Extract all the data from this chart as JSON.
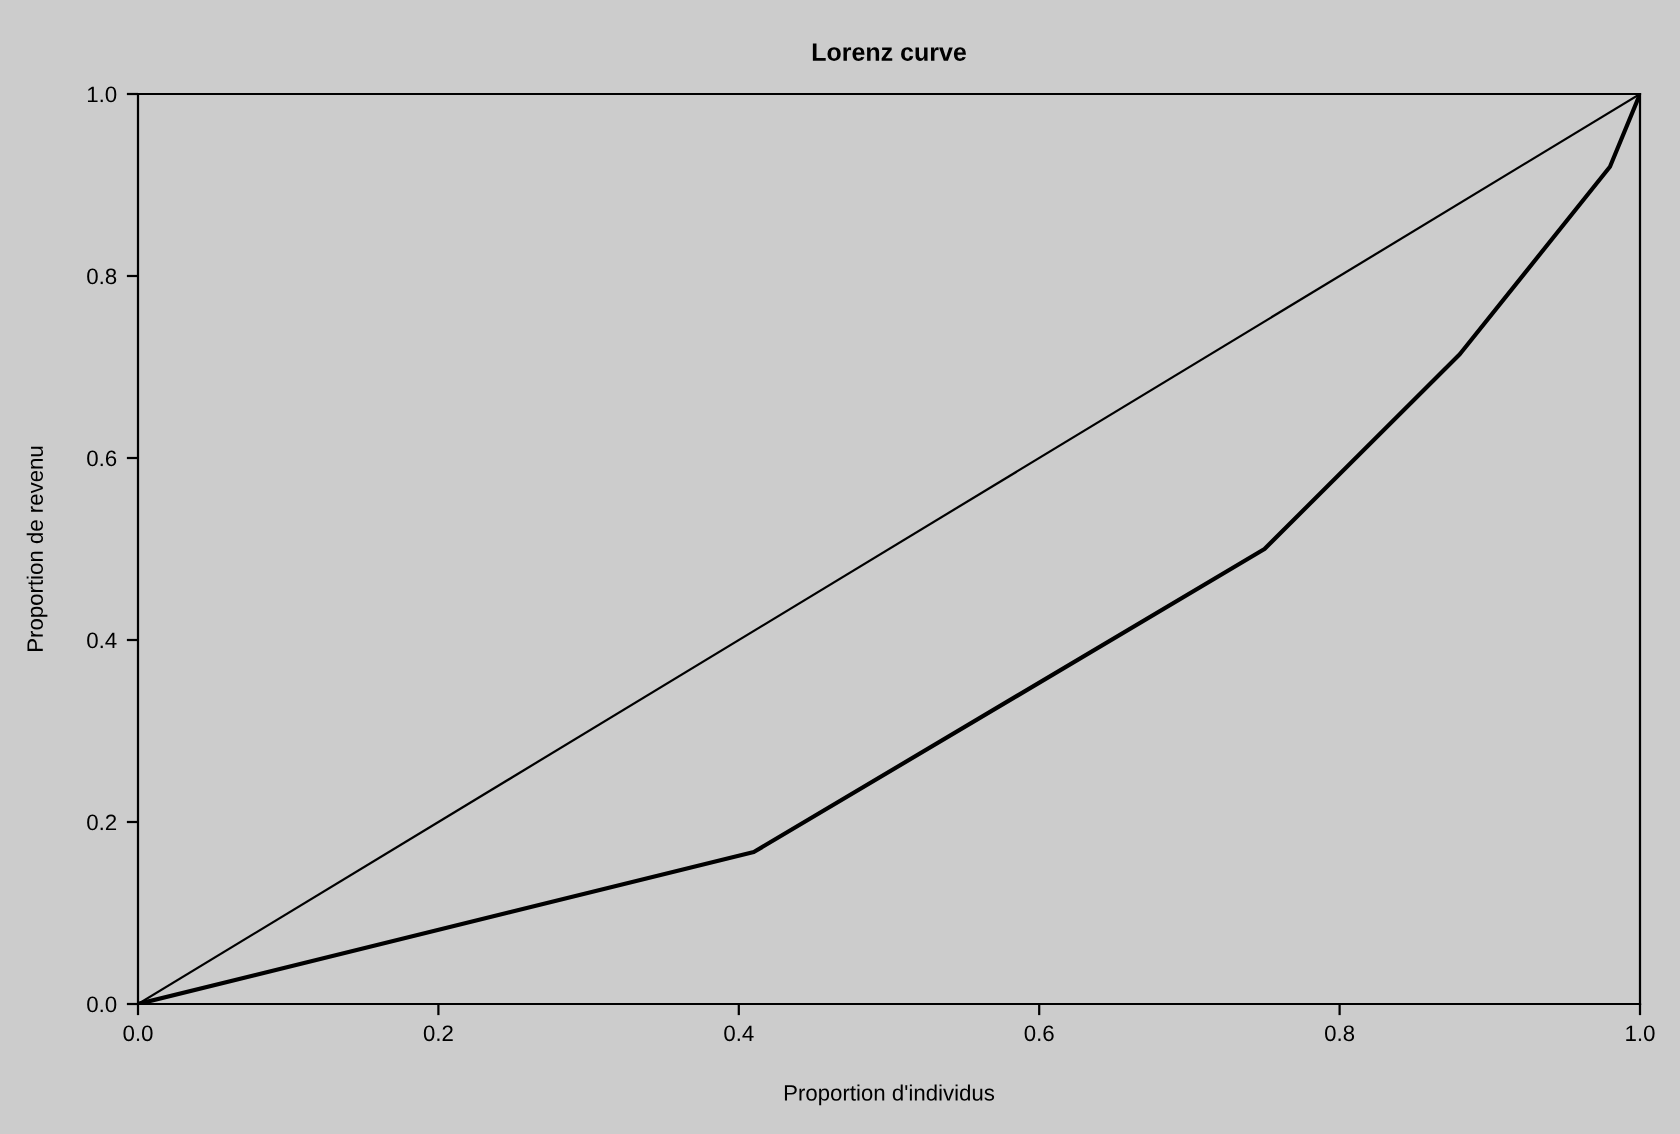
{
  "chart_data": {
    "type": "line",
    "title": "Lorenz curve",
    "xlabel": "Proportion d'individus",
    "ylabel": "Proportion de revenu",
    "series": [
      {
        "x": [
          0,
          1
        ],
        "values": [
          0,
          1
        ],
        "color": "#000000"
      },
      {
        "x": [
          0,
          0.41,
          0.75,
          0.88,
          0.98,
          1
        ],
        "values": [
          0,
          0.167,
          0.5,
          0.714,
          0.92,
          1
        ],
        "color": "#000000"
      }
    ],
    "xlim": [
      0,
      1
    ],
    "ylim": [
      0,
      1
    ],
    "xticks": [
      {
        "value": 0,
        "label": "0.0"
      },
      0.2,
      0.4,
      0.6,
      0.8,
      {
        "value": 1,
        "label": "1.0"
      }
    ],
    "yticks": [
      {
        "value": 0,
        "label": "0.0"
      },
      0.2,
      0.4,
      0.6,
      0.8,
      {
        "value": 1,
        "label": "1.0"
      }
    ],
    "grid": false,
    "marker": "none",
    "line_style": "solid"
  }
}
